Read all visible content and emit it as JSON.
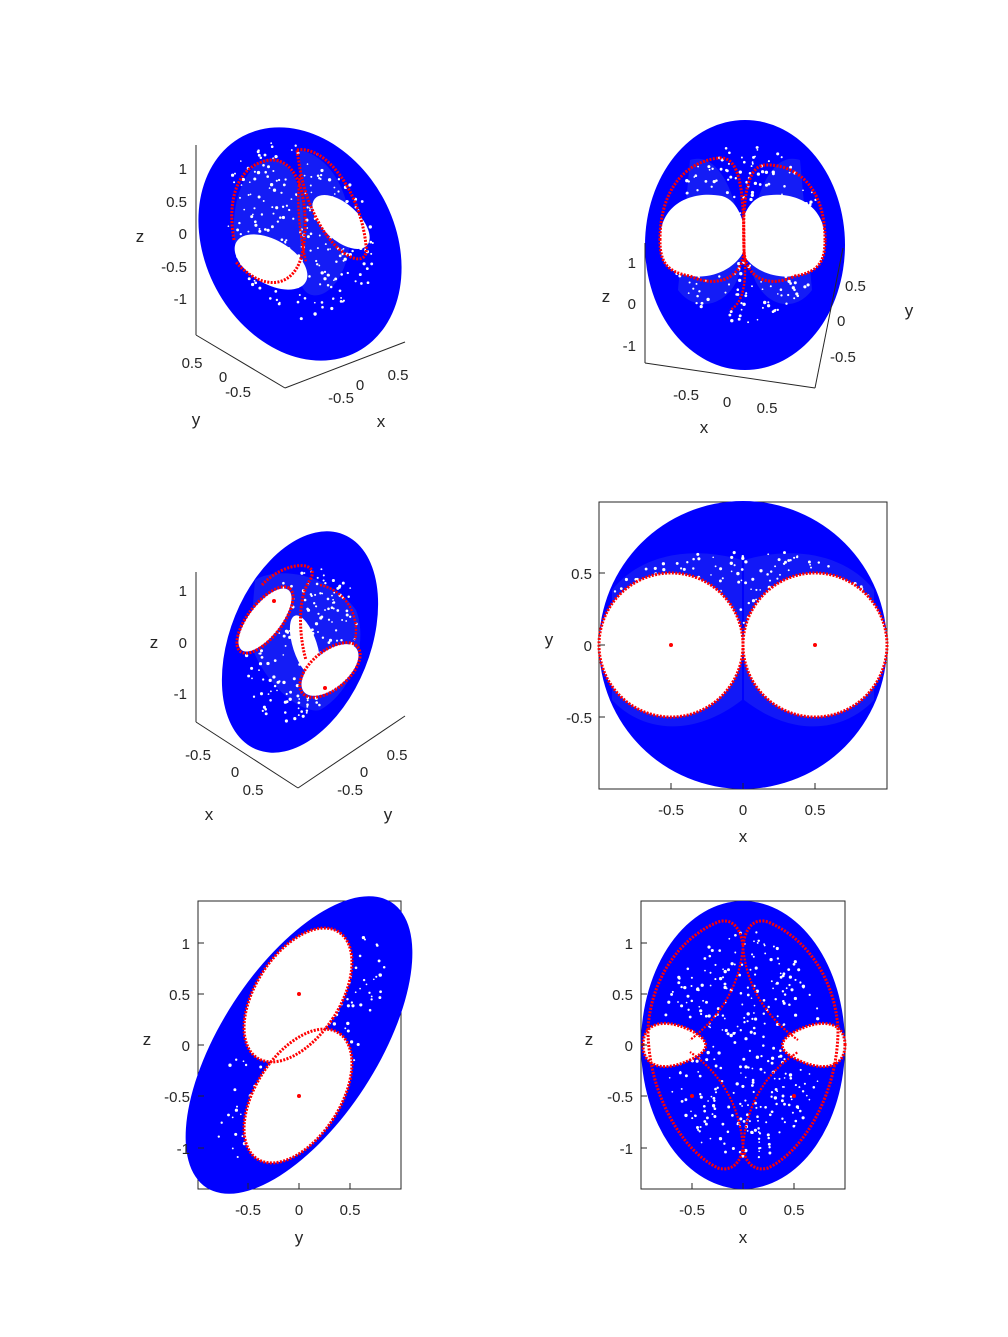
{
  "figure": {
    "background": "#ffffff",
    "colors": {
      "cloud": "#0000ff",
      "curve": "#ff0000",
      "axis": "#262626"
    }
  },
  "chart_data": [
    {
      "id": "p1",
      "type": "scatter",
      "projection": "3d",
      "view": "oblique, tilted",
      "xlabel": "x",
      "ylabel": "y",
      "zlabel": "z",
      "x_ticks": [
        "-0.5",
        "0",
        "0.5"
      ],
      "y_ticks": [
        "0.5",
        "0",
        "-0.5"
      ],
      "z_ticks": [
        "1",
        "0.5",
        "0",
        "-0.5",
        "-1"
      ],
      "grid": false,
      "series": [
        {
          "kind": "point cloud",
          "color": "#0000ff",
          "fill": "ellipsoid x²+y²+z²/1.4²≤1"
        },
        {
          "kind": "separatrix curves",
          "color": "#ff0000"
        }
      ],
      "red_points": 4
    },
    {
      "id": "p2",
      "type": "scatter",
      "projection": "3d",
      "view": "front, slightly rotated",
      "xlabel": "x",
      "ylabel": "y",
      "zlabel": "z",
      "x_ticks": [
        "-0.5",
        "0",
        "0.5"
      ],
      "y_ticks": [
        "0.5",
        "0",
        "-0.5"
      ],
      "z_ticks": [
        "1",
        "0",
        "-1"
      ],
      "grid": false,
      "red_points": 4
    },
    {
      "id": "p3",
      "type": "scatter",
      "projection": "3d",
      "view": "oblique, tilted other way",
      "xlabel": "x",
      "ylabel": "y",
      "zlabel": "z",
      "x_ticks": [
        "-0.5",
        "0",
        "0.5"
      ],
      "y_ticks": [
        "0.5",
        "0",
        "-0.5"
      ],
      "z_ticks": [
        "1",
        "0",
        "-1"
      ],
      "grid": false,
      "red_points": 2
    },
    {
      "id": "p4",
      "type": "scatter",
      "projection": "xy",
      "xlabel": "x",
      "ylabel": "y",
      "xlim": [
        -1,
        1
      ],
      "ylim": [
        -1,
        1
      ],
      "x_ticks": [
        "-0.5",
        "0",
        "0.5"
      ],
      "y_ticks": [
        "0.5",
        "0",
        "-0.5"
      ],
      "grid": false,
      "circles": [
        {
          "center": [
            -0.5,
            0
          ],
          "radius": 0.5
        },
        {
          "center": [
            0.5,
            0
          ],
          "radius": 0.5
        }
      ],
      "red_points": [
        [
          -0.5,
          0
        ],
        [
          0.5,
          0
        ]
      ]
    },
    {
      "id": "p5",
      "type": "scatter",
      "projection": "yz",
      "xlabel": "y",
      "ylabel": "z",
      "xlim": [
        -1,
        1
      ],
      "ylim": [
        -1.4,
        1.4
      ],
      "x_ticks": [
        "-0.5",
        "0",
        "0.5"
      ],
      "y_ticks": [
        "1",
        "0.5",
        "0",
        "-0.5",
        "-1"
      ],
      "grid": false,
      "red_points": [
        [
          0,
          0.5
        ],
        [
          0,
          -0.5
        ]
      ]
    },
    {
      "id": "p6",
      "type": "scatter",
      "projection": "xz",
      "xlabel": "x",
      "ylabel": "z",
      "xlim": [
        -1,
        1
      ],
      "ylim": [
        -1.4,
        1.4
      ],
      "x_ticks": [
        "-0.5",
        "0",
        "0.5"
      ],
      "y_ticks": [
        "1",
        "0.5",
        "0",
        "-0.5",
        "-1"
      ],
      "grid": false,
      "red_points": [
        [
          -0.5,
          -0.5
        ],
        [
          0.5,
          -0.5
        ]
      ]
    }
  ]
}
